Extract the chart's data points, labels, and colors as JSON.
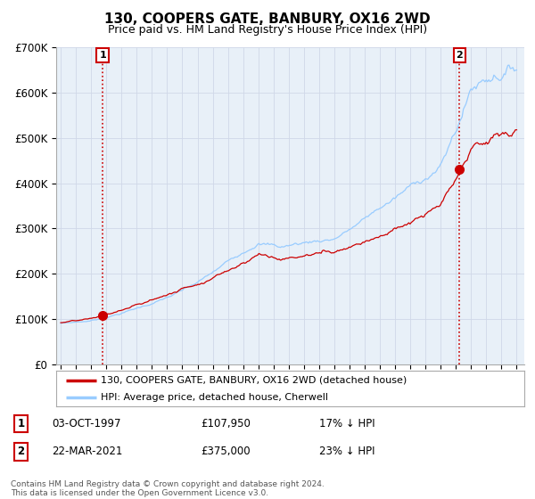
{
  "title": "130, COOPERS GATE, BANBURY, OX16 2WD",
  "subtitle": "Price paid vs. HM Land Registry's House Price Index (HPI)",
  "legend_entry1": "130, COOPERS GATE, BANBURY, OX16 2WD (detached house)",
  "legend_entry2": "HPI: Average price, detached house, Cherwell",
  "annotation1_label": "1",
  "annotation1_date": "03-OCT-1997",
  "annotation1_price": "£107,950",
  "annotation1_hpi": "17% ↓ HPI",
  "annotation2_label": "2",
  "annotation2_date": "22-MAR-2021",
  "annotation2_price": "£375,000",
  "annotation2_hpi": "23% ↓ HPI",
  "footer": "Contains HM Land Registry data © Crown copyright and database right 2024.\nThis data is licensed under the Open Government Licence v3.0.",
  "line1_color": "#cc0000",
  "line2_color": "#99ccff",
  "marker_color": "#cc0000",
  "annotation_box_color": "#cc0000",
  "grid_color": "#d0d8e8",
  "plot_bg_color": "#e8f0f8",
  "background_color": "#ffffff",
  "x_start_year": 1995,
  "x_end_year": 2025,
  "y_min": 0,
  "y_max": 700000,
  "y_ticks": [
    0,
    100000,
    200000,
    300000,
    400000,
    500000,
    600000,
    700000
  ],
  "y_tick_labels": [
    "£0",
    "£100K",
    "£200K",
    "£300K",
    "£400K",
    "£500K",
    "£600K",
    "£700K"
  ],
  "purchase1_year": 1997.75,
  "purchase1_price": 107950,
  "purchase2_year": 2021.22,
  "purchase2_price": 375000
}
